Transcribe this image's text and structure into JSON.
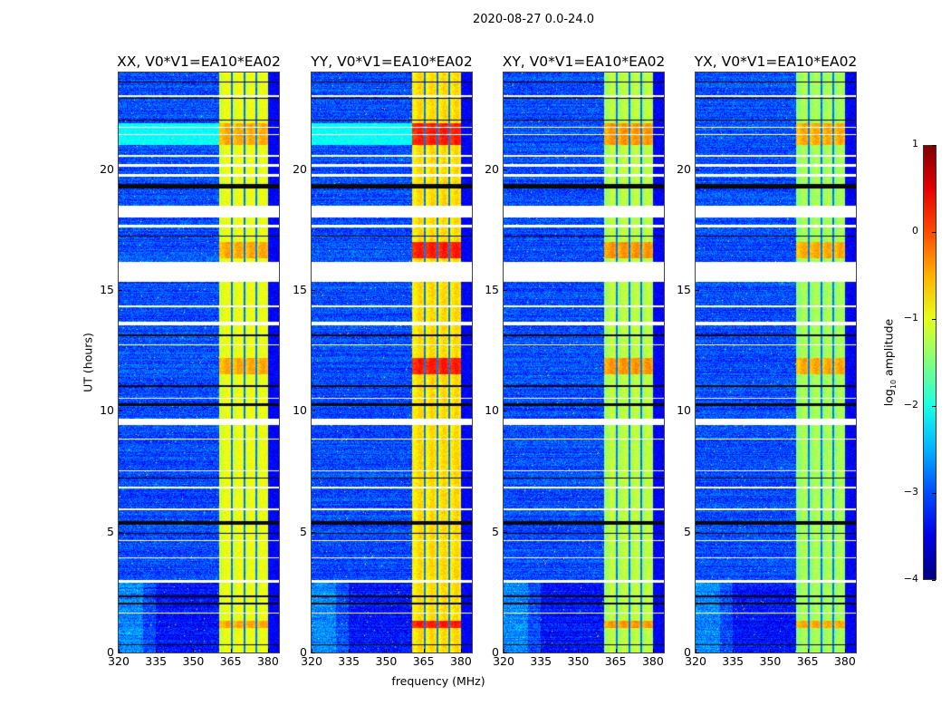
{
  "suptitle": "2020-08-27 0.0-24.0",
  "chart_data": {
    "type": "heatmap",
    "xlabel": "frequency (MHz)",
    "ylabel": "UT (hours)",
    "xlim": [
      320,
      384.4
    ],
    "ylim": [
      0,
      24
    ],
    "xticks": [
      320,
      335,
      350,
      365,
      380
    ],
    "yticks": [
      0,
      5,
      10,
      15,
      20
    ],
    "colormap": "jet",
    "colorbar": {
      "label_main": "log",
      "label_sub": "10",
      "label_rest": " amplitude",
      "range": [
        -4,
        1
      ],
      "ticks": [
        1,
        0,
        -1,
        -2,
        -3,
        -4
      ],
      "position": "right"
    },
    "band_mhz": [
      360.5,
      380
    ],
    "band_gaps_mhz": [
      365.5,
      370.5,
      375.3
    ],
    "flagged_hours": [
      [
        15.33,
        16.16
      ],
      [
        9.4,
        9.67
      ],
      [
        20.5,
        20.6
      ],
      [
        20.1,
        20.2
      ],
      [
        19.7,
        19.8
      ],
      [
        18.0,
        18.5
      ],
      [
        17.6,
        17.7
      ],
      [
        23.0,
        23.05
      ],
      [
        21.4,
        21.45
      ],
      [
        21.7,
        21.75
      ],
      [
        14.3,
        14.35
      ],
      [
        13.55,
        13.7
      ],
      [
        12.7,
        12.75
      ],
      [
        10.5,
        10.55
      ],
      [
        8.8,
        8.85
      ],
      [
        7.5,
        7.55
      ],
      [
        6.8,
        6.85
      ],
      [
        5.9,
        5.95
      ],
      [
        4.6,
        4.65
      ],
      [
        3.9,
        3.95
      ],
      [
        2.9,
        3.0
      ],
      [
        1.6,
        1.65
      ]
    ],
    "dead_hours": [
      [
        19.2,
        19.4
      ],
      [
        22.9,
        22.95
      ],
      [
        23.6,
        23.63
      ],
      [
        22.0,
        22.05
      ],
      [
        17.2,
        17.25
      ],
      [
        13.1,
        13.15
      ],
      [
        11.0,
        11.05
      ],
      [
        10.2,
        10.3
      ],
      [
        7.2,
        7.25
      ],
      [
        5.3,
        5.45
      ],
      [
        4.9,
        4.95
      ],
      [
        2.3,
        2.35
      ],
      [
        2.0,
        2.05
      ],
      [
        0.3,
        0.35
      ]
    ],
    "panels": [
      {
        "title": "XX, V0*V1=EA10*EA02",
        "band_level": -1.0,
        "hot_level": -0.5,
        "cyan_zone": true
      },
      {
        "title": "YY, V0*V1=EA10*EA02",
        "band_level": -0.75,
        "hot_level": 0.2,
        "cyan_zone": true
      },
      {
        "title": "XY, V0*V1=EA10*EA02",
        "band_level": -1.25,
        "hot_level": -0.4,
        "cyan_zone": false
      },
      {
        "title": "YX, V0*V1=EA10*EA02",
        "band_level": -1.35,
        "hot_level": -0.5,
        "cyan_zone": false
      }
    ],
    "hot_hours": [
      [
        21.0,
        21.9
      ],
      [
        16.3,
        17.0
      ],
      [
        11.5,
        12.2
      ],
      [
        1.0,
        1.3
      ]
    ]
  }
}
